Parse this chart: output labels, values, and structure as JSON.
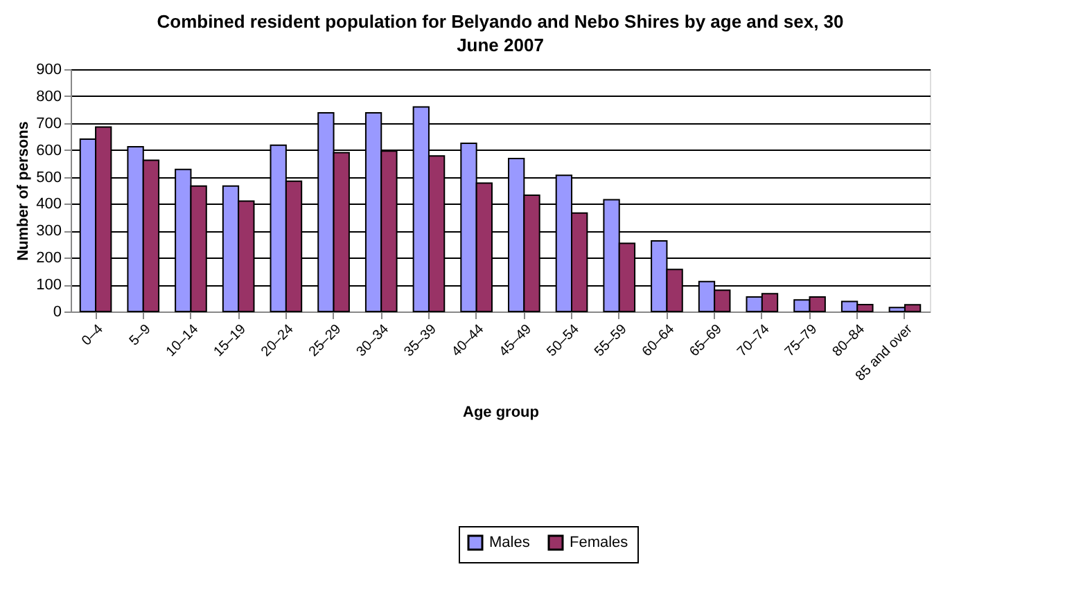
{
  "chart_data": {
    "type": "bar",
    "title": "Combined resident population for Belyando and Nebo Shires by age and sex, 30 June 2007",
    "xlabel": "Age group",
    "ylabel": "Number of persons",
    "categories": [
      "0–4",
      "5–9",
      "10–14",
      "15–19",
      "20–24",
      "25–29",
      "30–34",
      "35–39",
      "40–44",
      "45–49",
      "50–54",
      "55–59",
      "60–64",
      "65–69",
      "70–74",
      "75–79",
      "80–84",
      "85 and over"
    ],
    "series": [
      {
        "name": "Males",
        "color": "#9999ff",
        "values": [
          640,
          612,
          528,
          466,
          618,
          738,
          738,
          760,
          625,
          568,
          506,
          415,
          262,
          111,
          54,
          43,
          37,
          15
        ]
      },
      {
        "name": "Females",
        "color": "#993366",
        "values": [
          685,
          562,
          466,
          410,
          484,
          590,
          596,
          578,
          477,
          432,
          366,
          253,
          156,
          79,
          66,
          54,
          26,
          25
        ]
      }
    ],
    "ylim": [
      0,
      900
    ],
    "yticks": [
      0,
      100,
      200,
      300,
      400,
      500,
      600,
      700,
      800,
      900
    ],
    "grid": "y",
    "legend": "bottom"
  }
}
